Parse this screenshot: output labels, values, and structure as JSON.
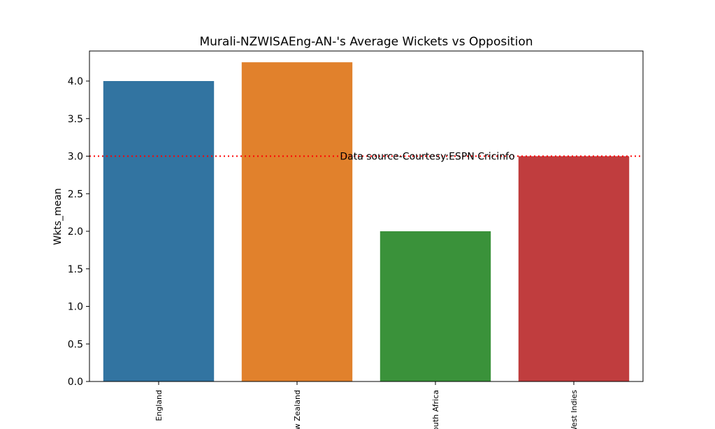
{
  "chart_data": {
    "type": "bar",
    "title": "Murali-NZWISAEng-AN-'s Average Wickets vs Opposition",
    "xlabel": "",
    "ylabel": "Wkts_mean",
    "categories": [
      "England",
      "New Zealand",
      "South Africa",
      "West Indies"
    ],
    "values": [
      4.0,
      4.25,
      2.0,
      3.0
    ],
    "bar_colors": [
      "#3274a1",
      "#e1812c",
      "#3a923a",
      "#c03d3e"
    ],
    "ylim": [
      0,
      4.4
    ],
    "yticks": [
      0.0,
      0.5,
      1.0,
      1.5,
      2.0,
      2.5,
      3.0,
      3.5,
      4.0
    ],
    "ytick_labels": [
      "0.0",
      "0.5",
      "1.0",
      "1.5",
      "2.0",
      "2.5",
      "3.0",
      "3.5",
      "4.0"
    ],
    "reference_line": {
      "value": 3.0,
      "color": "#ff0000",
      "style": "dotted"
    },
    "annotation": {
      "text": "Data source-Courtesy:ESPN Cricinfo",
      "x": 2,
      "y": 3.0
    },
    "grid": false,
    "legend": "none"
  }
}
